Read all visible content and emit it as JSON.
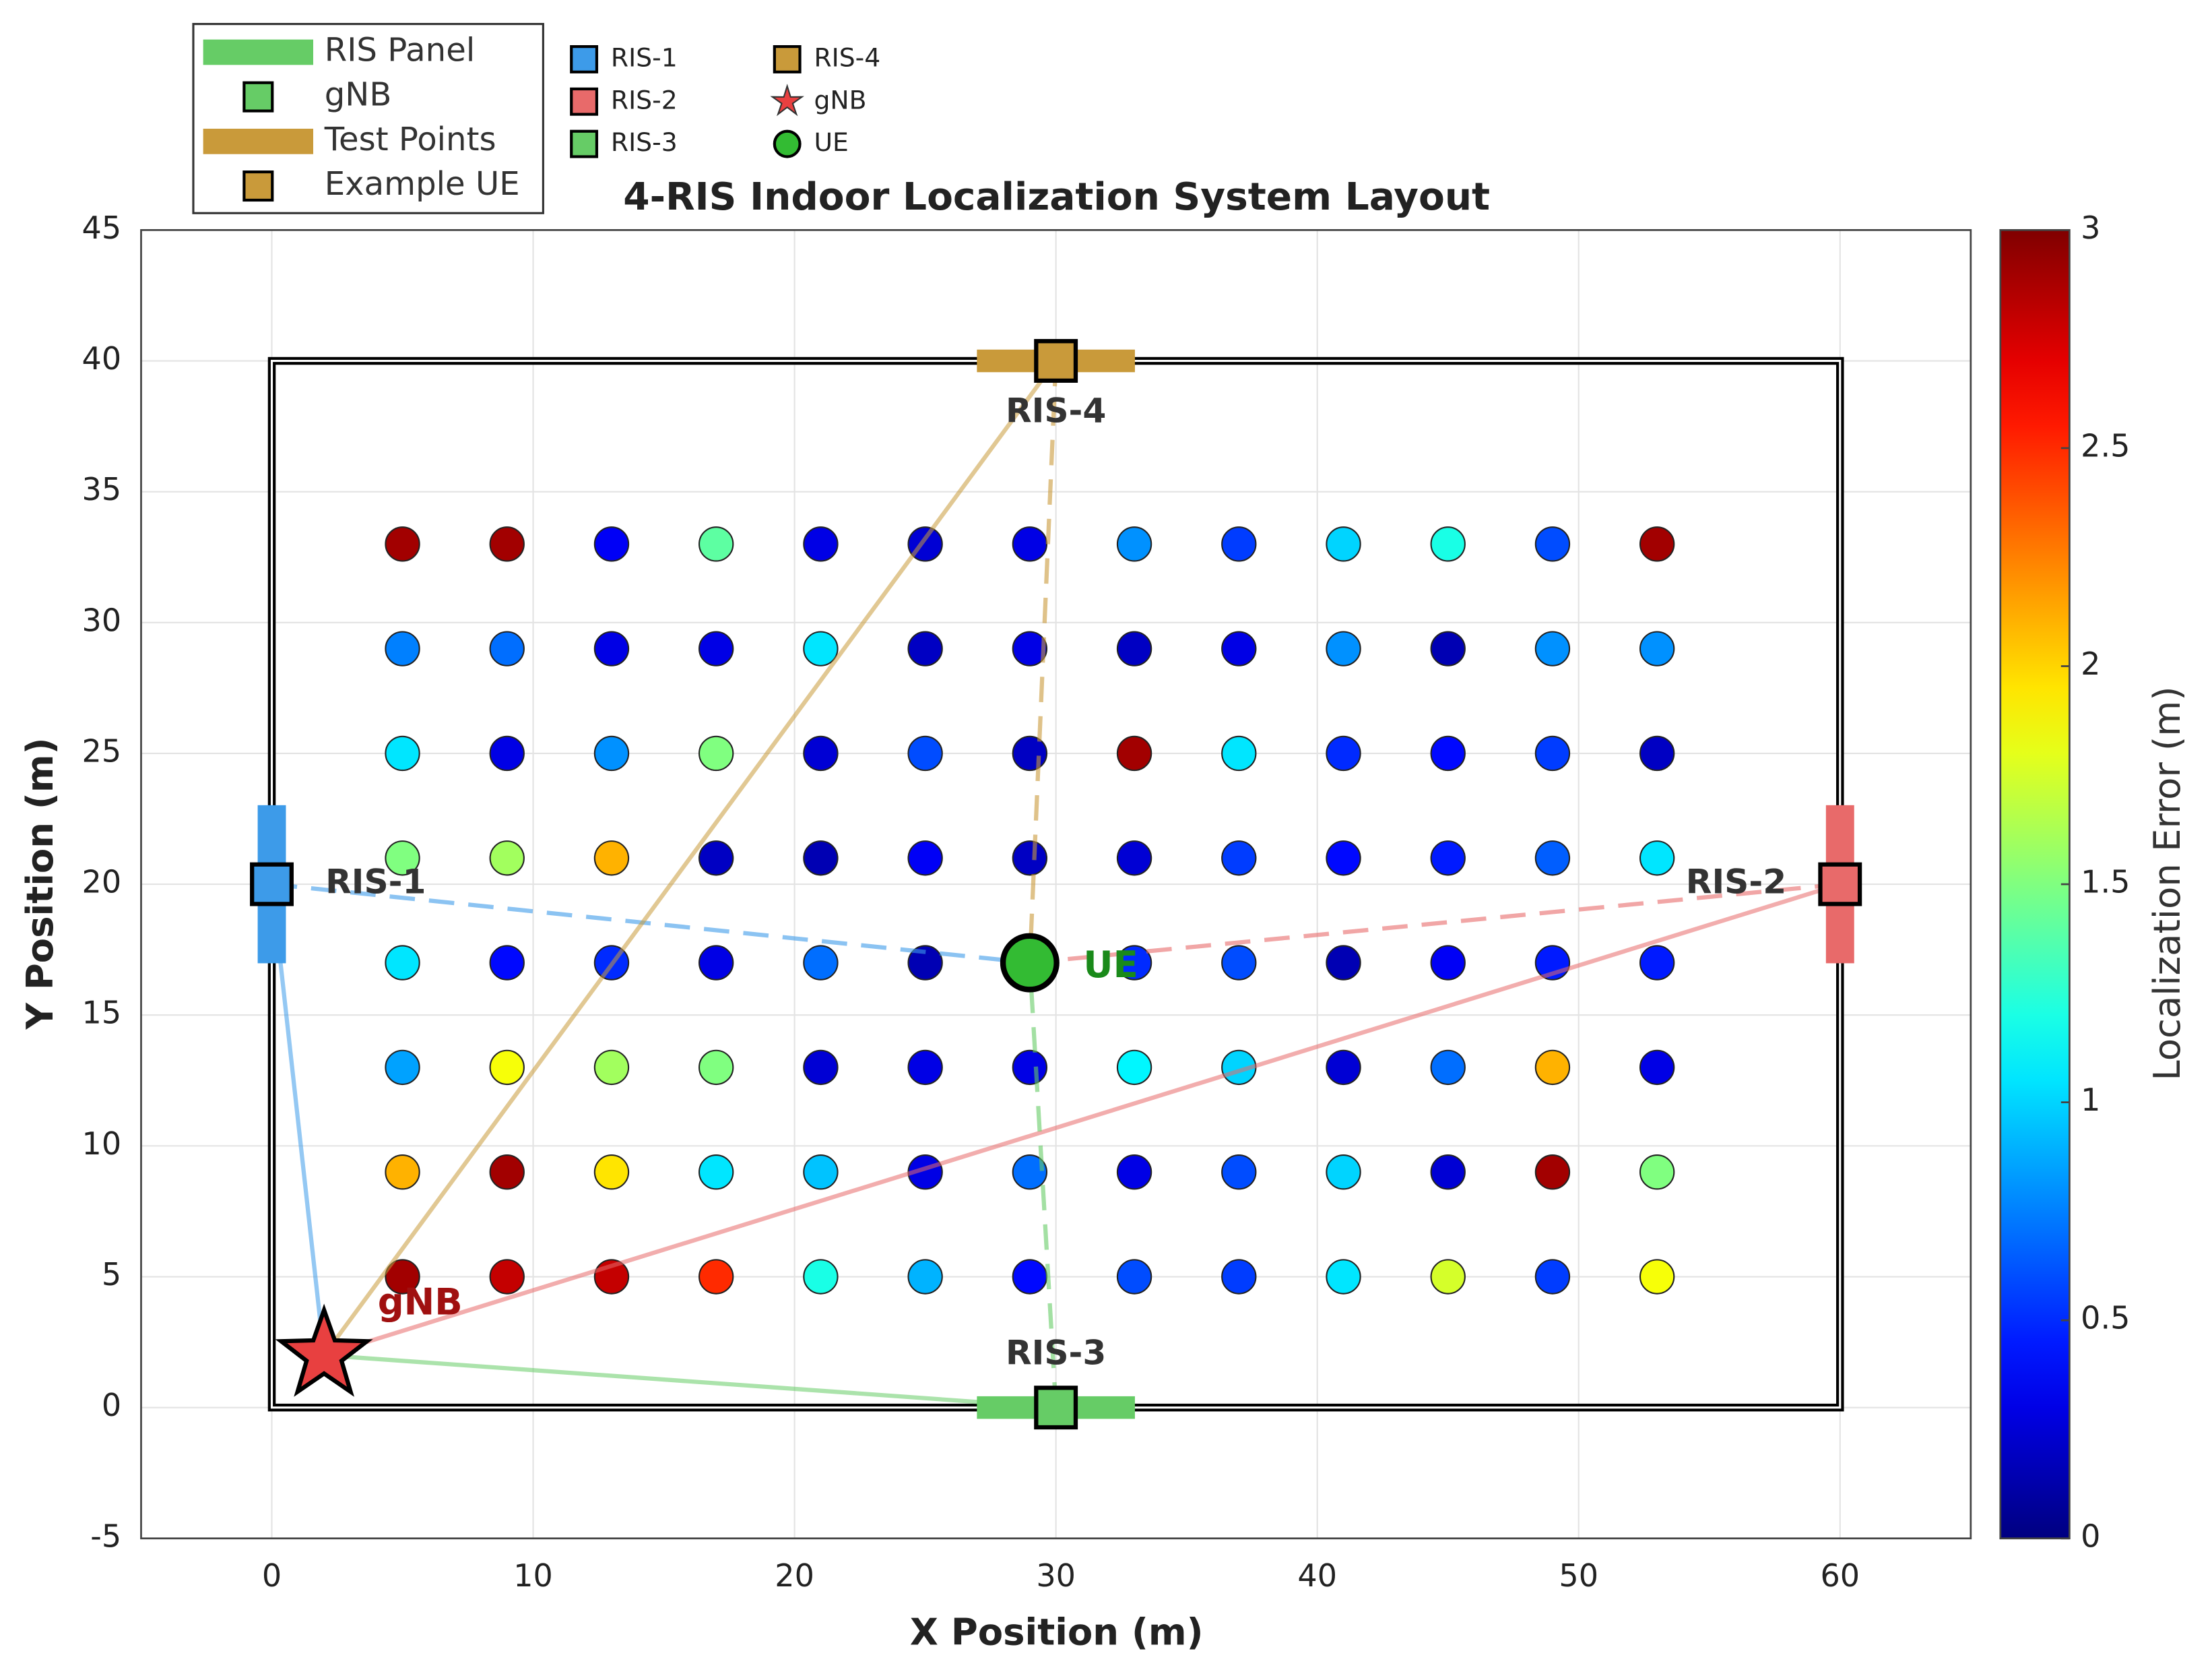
{
  "chart_data": {
    "type": "scatter",
    "title": "4-RIS Indoor Localization System Layout",
    "xlabel": "X Position (m)",
    "ylabel": "Y Position (m)",
    "xlim": [
      -5,
      65
    ],
    "ylim": [
      -5,
      45
    ],
    "xticks": [
      0,
      10,
      20,
      30,
      40,
      50,
      60
    ],
    "yticks": [
      -5,
      0,
      5,
      10,
      15,
      20,
      25,
      30,
      35,
      40,
      45
    ],
    "grid": true,
    "colorbar": {
      "label": "Localization Error (m)",
      "lim": [
        0,
        3
      ],
      "ticks": [
        0,
        0.5,
        1,
        1.5,
        2,
        2.5,
        3
      ],
      "colormap": "jet"
    },
    "room": {
      "x": [
        0,
        60
      ],
      "y": [
        0,
        40
      ]
    },
    "test_points": {
      "x": [
        5,
        9,
        13,
        17,
        21,
        25,
        29,
        33,
        37,
        41,
        45,
        49,
        53,
        5,
        9,
        13,
        17,
        21,
        25,
        29,
        33,
        37,
        41,
        45,
        49,
        53,
        5,
        9,
        13,
        17,
        21,
        25,
        29,
        33,
        37,
        41,
        45,
        49,
        53,
        5,
        9,
        13,
        17,
        21,
        25,
        29,
        33,
        37,
        41,
        45,
        49,
        53,
        5,
        9,
        13,
        17,
        21,
        25,
        29,
        33,
        37,
        41,
        45,
        49,
        53,
        5,
        9,
        13,
        17,
        21,
        25,
        29,
        33,
        37,
        41,
        45,
        49,
        53,
        5,
        9,
        13,
        17,
        21,
        25,
        29,
        33,
        37,
        41,
        45,
        49,
        53,
        5,
        9,
        13,
        17,
        21,
        25,
        29,
        33,
        37,
        41,
        45,
        49,
        53
      ],
      "y": [
        33,
        33,
        33,
        33,
        33,
        33,
        33,
        33,
        33,
        33,
        33,
        33,
        33,
        29,
        29,
        29,
        29,
        29,
        29,
        29,
        29,
        29,
        29,
        29,
        29,
        29,
        25,
        25,
        25,
        25,
        25,
        25,
        25,
        25,
        25,
        25,
        25,
        25,
        25,
        21,
        21,
        21,
        21,
        21,
        21,
        21,
        21,
        21,
        21,
        21,
        21,
        21,
        17,
        17,
        17,
        17,
        17,
        17,
        17,
        17,
        17,
        17,
        17,
        17,
        17,
        13,
        13,
        13,
        13,
        13,
        13,
        13,
        13,
        13,
        13,
        13,
        13,
        13,
        9,
        9,
        9,
        9,
        9,
        9,
        9,
        9,
        9,
        9,
        9,
        9,
        9,
        5,
        5,
        5,
        5,
        5,
        5,
        5,
        5,
        5,
        5,
        5,
        5,
        5
      ],
      "values": [
        2.9,
        2.9,
        0.35,
        1.4,
        0.3,
        0.25,
        0.3,
        0.8,
        0.55,
        1.0,
        1.2,
        0.6,
        2.9,
        0.75,
        0.7,
        0.3,
        0.3,
        1.05,
        0.2,
        0.3,
        0.2,
        0.3,
        0.8,
        0.15,
        0.8,
        0.8,
        1.05,
        0.3,
        0.8,
        1.5,
        0.25,
        0.6,
        0.2,
        2.9,
        1.05,
        0.5,
        0.4,
        0.55,
        0.2,
        1.5,
        1.6,
        2.1,
        0.2,
        0.15,
        0.35,
        0.2,
        0.25,
        0.55,
        0.4,
        0.45,
        0.65,
        1.05,
        1.05,
        0.4,
        0.5,
        0.3,
        0.7,
        0.15,
        0.5,
        0.5,
        0.6,
        0.15,
        0.35,
        0.45,
        0.45,
        0.85,
        1.85,
        1.6,
        1.5,
        0.25,
        0.3,
        0.3,
        1.1,
        1.0,
        0.25,
        0.7,
        2.1,
        0.3,
        2.1,
        2.9,
        1.95,
        1.05,
        0.95,
        0.3,
        0.7,
        0.3,
        0.6,
        1.0,
        0.25,
        2.9,
        1.5,
        2.9,
        2.8,
        2.8,
        2.5,
        1.2,
        0.9,
        0.4,
        0.6,
        0.55,
        1.05,
        1.75,
        0.55,
        1.85
      ]
    },
    "ris": [
      {
        "name": "RIS-1",
        "x": 0,
        "y": 20,
        "color": "#3d9be9",
        "orientation": "vertical",
        "label_position": "right"
      },
      {
        "name": "RIS-2",
        "x": 60,
        "y": 20,
        "color": "#e86a6a",
        "orientation": "vertical",
        "label_position": "left"
      },
      {
        "name": "RIS-3",
        "x": 30,
        "y": 0,
        "color": "#66cc66",
        "orientation": "horizontal",
        "label_position": "above"
      },
      {
        "name": "RIS-4",
        "x": 30,
        "y": 40,
        "color": "#c99a3a",
        "orientation": "horizontal",
        "label_position": "below"
      }
    ],
    "gnb": {
      "name": "gNB",
      "x": 2,
      "y": 2,
      "color": "#e84040",
      "label_color": "#a01010"
    },
    "ue": {
      "name": "UE",
      "x": 29,
      "y": 17,
      "color": "#33bb33",
      "label_color": "#1a8a1a"
    },
    "legend1": [
      {
        "label": "RIS Panel",
        "marker": "line",
        "color": "#66cc66"
      },
      {
        "label": "gNB",
        "marker": "square",
        "color": "#66cc66"
      },
      {
        "label": "Test Points",
        "marker": "line",
        "color": "#c99a3a"
      },
      {
        "label": "Example UE",
        "marker": "square",
        "color": "#c99a3a"
      }
    ],
    "legend2": [
      {
        "label": "RIS-1",
        "marker": "square",
        "color": "#3d9be9"
      },
      {
        "label": "RIS-2",
        "marker": "square",
        "color": "#e86a6a"
      },
      {
        "label": "RIS-3",
        "marker": "square",
        "color": "#66cc66"
      },
      {
        "label": "RIS-4",
        "marker": "square",
        "color": "#c99a3a"
      },
      {
        "label": "gNB",
        "marker": "star",
        "color": "#e84040"
      },
      {
        "label": "UE",
        "marker": "circle",
        "color": "#33bb33"
      }
    ]
  }
}
